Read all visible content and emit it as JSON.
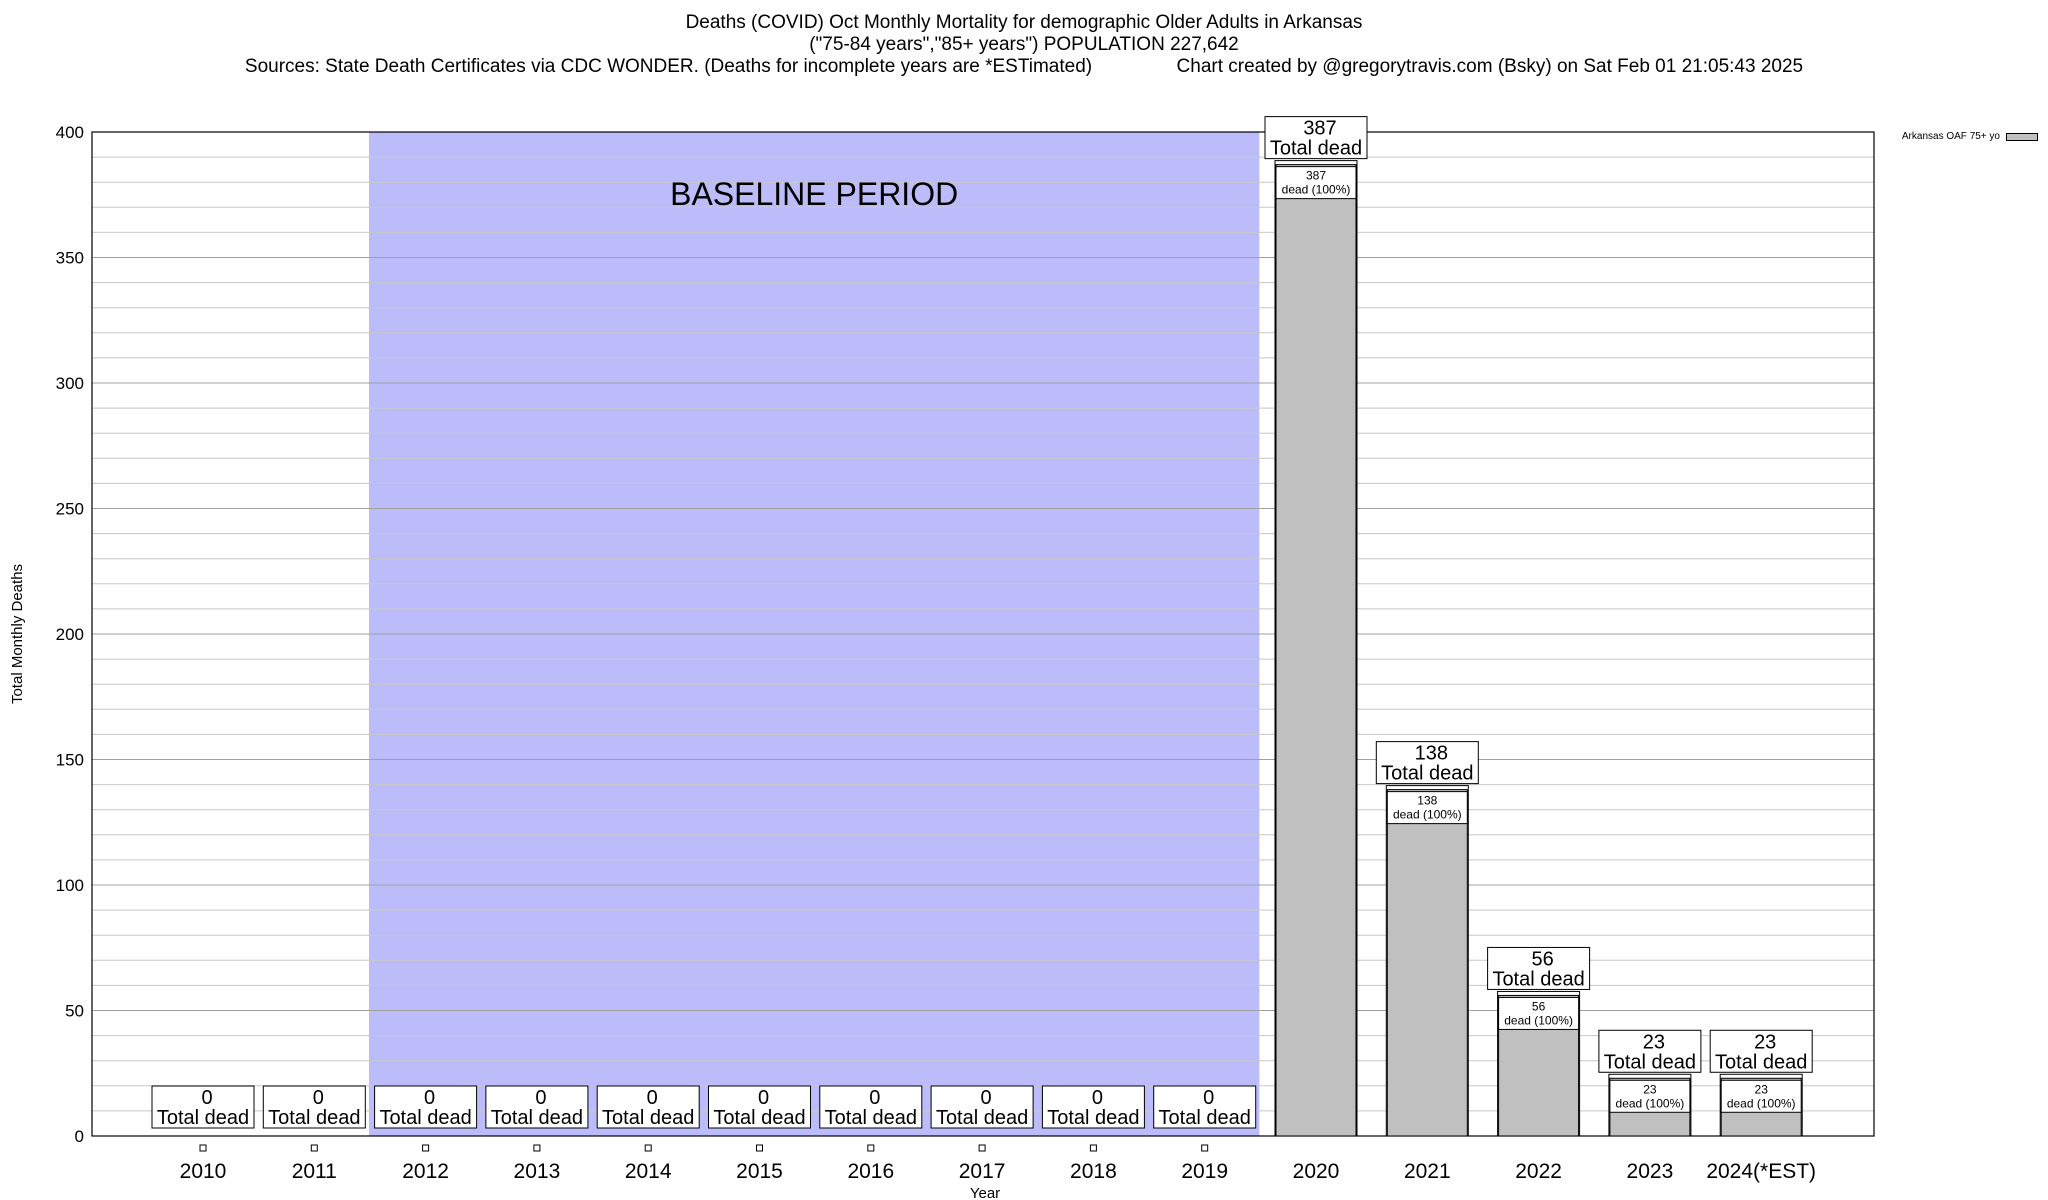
{
  "header": {
    "title_line1": "Deaths (COVID) Oct Monthly Mortality for demographic Older Adults in Arkansas",
    "title_line2": "(\"75-84 years\",\"85+ years\") POPULATION 227,642",
    "title_line3": "Sources: State Death Certificates via CDC WONDER. (Deaths for incomplete years are *ESTimated)                Chart created by @gregorytravis.com (Bsky) on Sat Feb 01 21:05:43 2025"
  },
  "legend": {
    "label": "Arkansas OAF 75+ yo",
    "color": "#c0c0c0"
  },
  "chart_data": {
    "type": "bar",
    "xlabel": "Year",
    "ylabel": "Total Monthly Deaths",
    "ylim": [
      0,
      400
    ],
    "yticks": [
      0,
      50,
      100,
      150,
      200,
      250,
      300,
      350,
      400
    ],
    "grid": true,
    "legend_position": "top-right",
    "categories": [
      "2010",
      "2011",
      "2012",
      "2013",
      "2014",
      "2015",
      "2016",
      "2017",
      "2018",
      "2019",
      "2020",
      "2021",
      "2022",
      "2023",
      "2024(*EST)"
    ],
    "series": [
      {
        "name": "Arkansas OAF 75+ yo",
        "values": [
          0,
          0,
          0,
          0,
          0,
          0,
          0,
          0,
          0,
          0,
          387,
          138,
          56,
          23,
          23
        ]
      }
    ],
    "total_label_text": "Total dead",
    "inner_label_text": "dead (100%)",
    "baseline": {
      "label": "BASELINE PERIOD",
      "from": "2012",
      "to": "2019",
      "color": "#bcbcfb"
    },
    "bar_color": "#c0c0c0"
  }
}
